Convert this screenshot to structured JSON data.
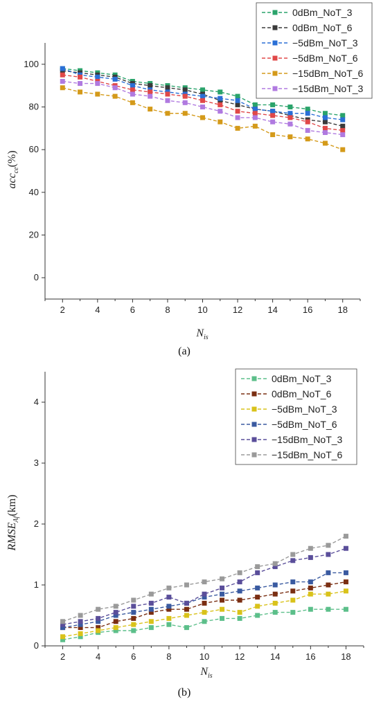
{
  "colors": {
    "0dBm_NoT_3": "#2aa36b",
    "0dBm_NoT_6": "#3a3a3a",
    "-5dBm_NoT_3": "#2a6fd6",
    "-5dBm_NoT_6": "#e04848",
    "-15dBm_NoT_6": "#d49a1a",
    "-15dBm_NoT_3": "#b07ae0",
    "b_0dBm_NoT_3": "#5cbf8a",
    "b_0dBm_NoT_6": "#7a2e12",
    "b_-5dBm_NoT_3": "#d9c21a",
    "b_-5dBm_NoT_6": "#3a5aa0",
    "b_-15dBm_NoT_3": "#5a4e9a",
    "b_-15dBm_NoT_6": "#9a9a9a"
  },
  "chart_data": [
    {
      "type": "line",
      "caption": "(a)",
      "ylabel_main": "acc",
      "ylabel_sub": "ce",
      "ylabel_unit": "(%)",
      "xlabel_main": "N",
      "xlabel_sub": "is",
      "xlim": [
        1,
        19
      ],
      "ylim": [
        -10,
        110
      ],
      "xticks": [
        2,
        4,
        6,
        8,
        10,
        12,
        14,
        16,
        18
      ],
      "yticks": [
        0,
        20,
        40,
        60,
        80,
        100
      ],
      "x": [
        2,
        3,
        4,
        5,
        6,
        7,
        8,
        9,
        10,
        11,
        12,
        13,
        14,
        15,
        16,
        17,
        18
      ],
      "series": [
        {
          "name": "0dBm_NoT_3",
          "color_key": "0dBm_NoT_3",
          "values": [
            98,
            97,
            96,
            95,
            92,
            91,
            90,
            89,
            88,
            87,
            85,
            81,
            81,
            80,
            79,
            77,
            76
          ]
        },
        {
          "name": "0dBm_NoT_6",
          "color_key": "0dBm_NoT_6",
          "values": [
            97,
            96,
            95,
            94,
            91,
            90,
            89,
            88,
            86,
            83,
            81,
            79,
            78,
            76,
            74,
            73,
            71
          ]
        },
        {
          "name": "−5dBm_NoT_3",
          "color_key": "-5dBm_NoT_3",
          "values": [
            98,
            95,
            94,
            93,
            90,
            88,
            87,
            86,
            85,
            84,
            83,
            79,
            78,
            77,
            77,
            75,
            74
          ]
        },
        {
          "name": "−5dBm_NoT_6",
          "color_key": "-5dBm_NoT_6",
          "values": [
            95,
            94,
            92,
            90,
            88,
            87,
            86,
            85,
            83,
            81,
            78,
            77,
            76,
            75,
            73,
            70,
            69
          ]
        },
        {
          "name": "−15dBm_NoT_6",
          "color_key": "-15dBm_NoT_6",
          "values": [
            89,
            87,
            86,
            85,
            82,
            79,
            77,
            77,
            75,
            73,
            70,
            71,
            67,
            66,
            65,
            63,
            60
          ]
        },
        {
          "name": "−15dBm_NoT_3",
          "color_key": "-15dBm_NoT_3",
          "values": [
            92,
            91,
            91,
            89,
            86,
            85,
            83,
            82,
            80,
            78,
            75,
            75,
            73,
            72,
            69,
            68,
            67
          ]
        }
      ]
    },
    {
      "type": "line",
      "caption": "(b)",
      "ylabel_main": "RMSE",
      "ylabel_sub": "Af",
      "ylabel_unit": "(km)",
      "xlabel_main": "N",
      "xlabel_sub": "is",
      "xlim": [
        1,
        19
      ],
      "ylim": [
        0,
        4.5
      ],
      "xticks": [
        2,
        4,
        6,
        8,
        10,
        12,
        14,
        16,
        18
      ],
      "yticks": [
        0,
        1,
        2,
        3,
        4
      ],
      "x": [
        2,
        3,
        4,
        5,
        6,
        7,
        8,
        9,
        10,
        11,
        12,
        13,
        14,
        15,
        16,
        17,
        18
      ],
      "series": [
        {
          "name": "0dBm_NoT_3",
          "color_key": "b_0dBm_NoT_3",
          "values": [
            0.1,
            0.15,
            0.22,
            0.25,
            0.25,
            0.3,
            0.35,
            0.3,
            0.4,
            0.45,
            0.45,
            0.5,
            0.55,
            0.55,
            0.6,
            0.6,
            0.6
          ]
        },
        {
          "name": "0dBm_NoT_6",
          "color_key": "b_0dBm_NoT_6",
          "values": [
            0.3,
            0.3,
            0.3,
            0.4,
            0.45,
            0.55,
            0.6,
            0.6,
            0.7,
            0.75,
            0.75,
            0.8,
            0.85,
            0.9,
            0.95,
            1.0,
            1.05
          ]
        },
        {
          "name": "−5dBm_NoT_3",
          "color_key": "b_-5dBm_NoT_3",
          "values": [
            0.15,
            0.2,
            0.25,
            0.3,
            0.35,
            0.4,
            0.45,
            0.5,
            0.55,
            0.6,
            0.55,
            0.65,
            0.7,
            0.75,
            0.85,
            0.85,
            0.9
          ]
        },
        {
          "name": "−5dBm_NoT_6",
          "color_key": "b_-5dBm_NoT_6",
          "values": [
            0.3,
            0.35,
            0.4,
            0.5,
            0.55,
            0.6,
            0.65,
            0.7,
            0.8,
            0.85,
            0.9,
            0.95,
            1.0,
            1.05,
            1.05,
            1.2,
            1.2
          ]
        },
        {
          "name": "−15dBm_NoT_3",
          "color_key": "b_-15dBm_NoT_3",
          "values": [
            0.35,
            0.4,
            0.45,
            0.55,
            0.65,
            0.7,
            0.8,
            0.7,
            0.85,
            0.95,
            1.05,
            1.2,
            1.3,
            1.4,
            1.45,
            1.5,
            1.6
          ]
        },
        {
          "name": "−15dBm_NoT_6",
          "color_key": "b_-15dBm_NoT_6",
          "values": [
            0.4,
            0.5,
            0.6,
            0.65,
            0.75,
            0.85,
            0.95,
            1.0,
            1.05,
            1.1,
            1.2,
            1.3,
            1.35,
            1.5,
            1.6,
            1.65,
            1.8
          ]
        }
      ]
    }
  ]
}
